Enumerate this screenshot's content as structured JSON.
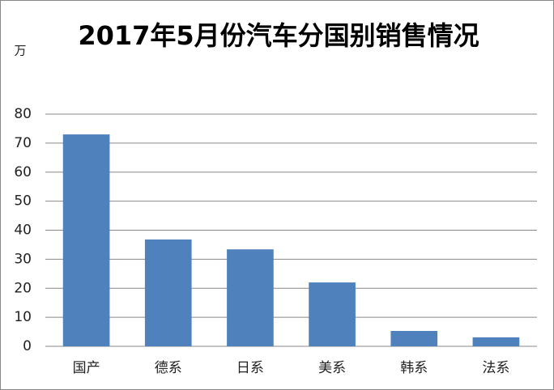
{
  "chart_data": {
    "type": "bar",
    "title": "2017年5月份汽车分国别销售情况",
    "y_label": "万",
    "categories": [
      "国产",
      "德系",
      "日系",
      "美系",
      "韩系",
      "法系"
    ],
    "values": [
      73,
      36.8,
      33.4,
      22,
      5.3,
      3.1
    ],
    "color": "#4f81bd",
    "ylim": [
      0,
      80
    ],
    "yticks": [
      0,
      10,
      20,
      30,
      40,
      50,
      60,
      70,
      80
    ],
    "grid": true
  }
}
